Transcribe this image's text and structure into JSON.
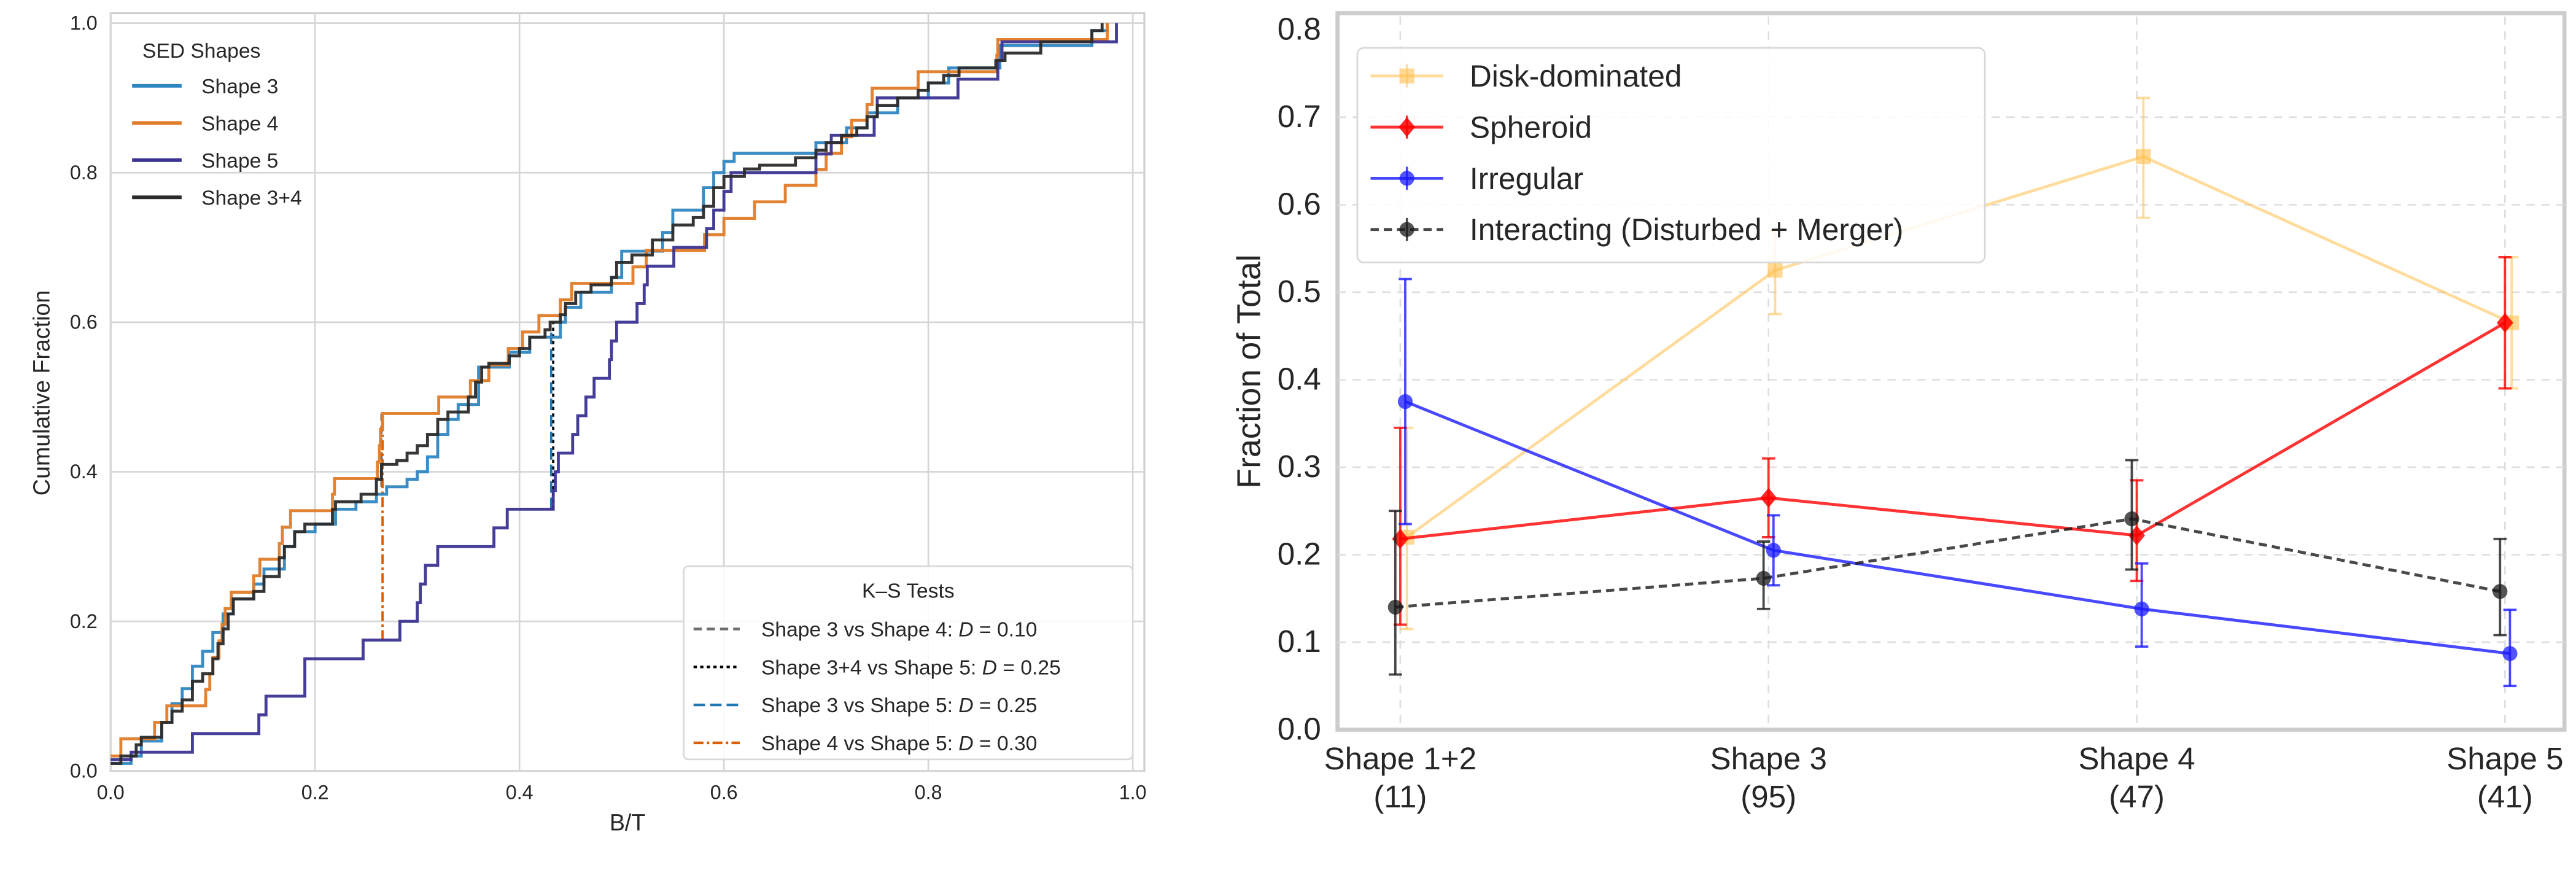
{
  "chart_data": [
    {
      "type": "line",
      "subtype": "step-cdf",
      "xlabel": "B/T",
      "ylabel": "Cumulative Fraction",
      "xlim": [
        0.0,
        1.0
      ],
      "ylim": [
        0.0,
        1.0
      ],
      "xticks": [
        "0.0",
        "0.2",
        "0.4",
        "0.6",
        "0.8",
        "1.0"
      ],
      "yticks": [
        "0.0",
        "0.2",
        "0.4",
        "0.6",
        "0.8",
        "1.0"
      ],
      "grid": true,
      "legend": {
        "title": "SED Shapes",
        "placement": "top-left"
      },
      "series": [
        {
          "name": "Shape 3",
          "color": "#2e86c1",
          "points": [
            [
              0,
              0.01
            ],
            [
              0.02,
              0.02
            ],
            [
              0.03,
              0.04
            ],
            [
              0.05,
              0.065
            ],
            [
              0.06,
              0.09
            ],
            [
              0.07,
              0.11
            ],
            [
              0.08,
              0.14
            ],
            [
              0.09,
              0.16
            ],
            [
              0.1,
              0.185
            ],
            [
              0.11,
              0.21
            ],
            [
              0.12,
              0.23
            ],
            [
              0.14,
              0.25
            ],
            [
              0.15,
              0.27
            ],
            [
              0.17,
              0.3
            ],
            [
              0.18,
              0.32
            ],
            [
              0.2,
              0.33
            ],
            [
              0.22,
              0.35
            ],
            [
              0.24,
              0.36
            ],
            [
              0.26,
              0.37
            ],
            [
              0.27,
              0.38
            ],
            [
              0.29,
              0.39
            ],
            [
              0.3,
              0.4
            ],
            [
              0.31,
              0.42
            ],
            [
              0.32,
              0.45
            ],
            [
              0.33,
              0.47
            ],
            [
              0.34,
              0.49
            ],
            [
              0.36,
              0.52
            ],
            [
              0.36,
              0.54
            ],
            [
              0.39,
              0.56
            ],
            [
              0.41,
              0.58
            ],
            [
              0.44,
              0.6
            ],
            [
              0.445,
              0.62
            ],
            [
              0.46,
              0.64
            ],
            [
              0.49,
              0.66
            ],
            [
              0.5,
              0.695
            ],
            [
              0.54,
              0.72
            ],
            [
              0.55,
              0.75
            ],
            [
              0.58,
              0.78
            ],
            [
              0.59,
              0.8
            ],
            [
              0.6,
              0.815
            ],
            [
              0.61,
              0.826
            ],
            [
              0.69,
              0.84
            ],
            [
              0.72,
              0.86
            ],
            [
              0.74,
              0.88
            ],
            [
              0.77,
              0.9
            ],
            [
              0.8,
              0.92
            ],
            [
              0.82,
              0.94
            ],
            [
              0.87,
              0.95
            ],
            [
              0.87,
              0.97
            ],
            [
              0.96,
              0.99
            ],
            [
              0.975,
              1.0
            ]
          ]
        },
        {
          "name": "Shape 4",
          "color": "#e07b28",
          "points": [
            [
              0,
              0.02
            ],
            [
              0.01,
              0.043
            ],
            [
              0.043,
              0.065
            ],
            [
              0.055,
              0.087
            ],
            [
              0.093,
              0.109
            ],
            [
              0.097,
              0.13
            ],
            [
              0.1,
              0.152
            ],
            [
              0.106,
              0.174
            ],
            [
              0.109,
              0.196
            ],
            [
              0.112,
              0.217
            ],
            [
              0.118,
              0.239
            ],
            [
              0.14,
              0.261
            ],
            [
              0.146,
              0.283
            ],
            [
              0.165,
              0.304
            ],
            [
              0.168,
              0.326
            ],
            [
              0.176,
              0.348
            ],
            [
              0.217,
              0.37
            ],
            [
              0.219,
              0.391
            ],
            [
              0.261,
              0.413
            ],
            [
              0.263,
              0.435
            ],
            [
              0.264,
              0.457
            ],
            [
              0.266,
              0.478
            ],
            [
              0.321,
              0.5
            ],
            [
              0.352,
              0.522
            ],
            [
              0.37,
              0.543
            ],
            [
              0.389,
              0.565
            ],
            [
              0.403,
              0.587
            ],
            [
              0.419,
              0.609
            ],
            [
              0.44,
              0.63
            ],
            [
              0.451,
              0.652
            ],
            [
              0.511,
              0.674
            ],
            [
              0.524,
              0.696
            ],
            [
              0.581,
              0.717
            ],
            [
              0.6,
              0.739
            ],
            [
              0.63,
              0.761
            ],
            [
              0.66,
              0.783
            ],
            [
              0.69,
              0.804
            ],
            [
              0.7,
              0.826
            ],
            [
              0.715,
              0.848
            ],
            [
              0.725,
              0.87
            ],
            [
              0.74,
              0.891
            ],
            [
              0.745,
              0.913
            ],
            [
              0.79,
              0.935
            ],
            [
              0.867,
              0.957
            ],
            [
              0.868,
              0.978
            ],
            [
              0.975,
              1.0
            ]
          ]
        },
        {
          "name": "Shape 5",
          "color": "#3b3494",
          "points": [
            [
              0,
              0.015
            ],
            [
              0.02,
              0.025
            ],
            [
              0.08,
              0.05
            ],
            [
              0.145,
              0.075
            ],
            [
              0.152,
              0.1
            ],
            [
              0.19,
              0.15
            ],
            [
              0.247,
              0.175
            ],
            [
              0.283,
              0.2
            ],
            [
              0.3,
              0.225
            ],
            [
              0.303,
              0.25
            ],
            [
              0.308,
              0.275
            ],
            [
              0.32,
              0.3
            ],
            [
              0.375,
              0.325
            ],
            [
              0.388,
              0.35
            ],
            [
              0.433,
              0.375
            ],
            [
              0.435,
              0.4
            ],
            [
              0.438,
              0.425
            ],
            [
              0.452,
              0.45
            ],
            [
              0.457,
              0.475
            ],
            [
              0.465,
              0.5
            ],
            [
              0.473,
              0.525
            ],
            [
              0.488,
              0.55
            ],
            [
              0.49,
              0.575
            ],
            [
              0.495,
              0.6
            ],
            [
              0.515,
              0.625
            ],
            [
              0.522,
              0.65
            ],
            [
              0.525,
              0.675
            ],
            [
              0.551,
              0.7
            ],
            [
              0.583,
              0.725
            ],
            [
              0.59,
              0.75
            ],
            [
              0.6,
              0.775
            ],
            [
              0.607,
              0.8
            ],
            [
              0.69,
              0.825
            ],
            [
              0.705,
              0.85
            ],
            [
              0.747,
              0.875
            ],
            [
              0.75,
              0.9
            ],
            [
              0.829,
              0.925
            ],
            [
              0.868,
              0.95
            ],
            [
              0.872,
              0.975
            ],
            [
              0.984,
              1.0
            ]
          ]
        },
        {
          "name": "Shape 3+4",
          "color": "#2b2b2b",
          "points": [
            [
              0,
              0.01
            ],
            [
              0.01,
              0.02
            ],
            [
              0.025,
              0.035
            ],
            [
              0.03,
              0.045
            ],
            [
              0.05,
              0.065
            ],
            [
              0.06,
              0.08
            ],
            [
              0.07,
              0.095
            ],
            [
              0.08,
              0.12
            ],
            [
              0.09,
              0.13
            ],
            [
              0.1,
              0.15
            ],
            [
              0.105,
              0.17
            ],
            [
              0.11,
              0.19
            ],
            [
              0.115,
              0.21
            ],
            [
              0.12,
              0.23
            ],
            [
              0.14,
              0.24
            ],
            [
              0.15,
              0.26
            ],
            [
              0.165,
              0.285
            ],
            [
              0.17,
              0.3
            ],
            [
              0.18,
              0.32
            ],
            [
              0.19,
              0.33
            ],
            [
              0.217,
              0.35
            ],
            [
              0.22,
              0.36
            ],
            [
              0.245,
              0.37
            ],
            [
              0.26,
              0.39
            ],
            [
              0.265,
              0.41
            ],
            [
              0.28,
              0.415
            ],
            [
              0.29,
              0.425
            ],
            [
              0.3,
              0.435
            ],
            [
              0.31,
              0.45
            ],
            [
              0.32,
              0.47
            ],
            [
              0.33,
              0.48
            ],
            [
              0.35,
              0.5
            ],
            [
              0.357,
              0.52
            ],
            [
              0.363,
              0.54
            ],
            [
              0.37,
              0.545
            ],
            [
              0.39,
              0.555
            ],
            [
              0.4,
              0.565
            ],
            [
              0.41,
              0.58
            ],
            [
              0.425,
              0.59
            ],
            [
              0.43,
              0.6
            ],
            [
              0.44,
              0.61
            ],
            [
              0.445,
              0.625
            ],
            [
              0.455,
              0.64
            ],
            [
              0.47,
              0.65
            ],
            [
              0.49,
              0.66
            ],
            [
              0.495,
              0.68
            ],
            [
              0.51,
              0.69
            ],
            [
              0.53,
              0.71
            ],
            [
              0.55,
              0.73
            ],
            [
              0.57,
              0.74
            ],
            [
              0.58,
              0.755
            ],
            [
              0.59,
              0.78
            ],
            [
              0.6,
              0.795
            ],
            [
              0.62,
              0.805
            ],
            [
              0.635,
              0.81
            ],
            [
              0.67,
              0.82
            ],
            [
              0.69,
              0.83
            ],
            [
              0.7,
              0.84
            ],
            [
              0.715,
              0.85
            ],
            [
              0.73,
              0.86
            ],
            [
              0.74,
              0.875
            ],
            [
              0.75,
              0.89
            ],
            [
              0.77,
              0.9
            ],
            [
              0.79,
              0.91
            ],
            [
              0.8,
              0.92
            ],
            [
              0.815,
              0.93
            ],
            [
              0.83,
              0.94
            ],
            [
              0.866,
              0.95
            ],
            [
              0.875,
              0.96
            ],
            [
              0.91,
              0.975
            ],
            [
              0.96,
              0.99
            ],
            [
              0.97,
              1.0
            ]
          ]
        }
      ],
      "ks_legend": {
        "title": "K–S Tests",
        "placement": "bottom-right",
        "entries": [
          {
            "label": "Shape 3 vs Shape 4: ",
            "stat": "D",
            "value": " = 0.10",
            "color": "#6e6e6e",
            "style": "dashed",
            "x": 0.265,
            "y_range": [
              0.38,
              0.478
            ]
          },
          {
            "label": "Shape 3+4 vs Shape 5: ",
            "stat": "D",
            "value": " = 0.25",
            "color": "#000000",
            "style": "dotted",
            "x": 0.433,
            "y_range": [
              0.35,
              0.6
            ]
          },
          {
            "label": "Shape 3 vs Shape 5: ",
            "stat": "D",
            "value": " = 0.25",
            "color": "#1f77b4",
            "style": "long-dashed",
            "x": 0.431,
            "y_range": [
              0.35,
              0.59
            ]
          },
          {
            "label": "Shape 4 vs Shape 5: ",
            "stat": "D",
            "value": " = 0.30",
            "color": "#d95f02",
            "style": "dash-dot",
            "x": 0.266,
            "y_range": [
              0.175,
              0.478
            ]
          }
        ]
      }
    },
    {
      "type": "line",
      "subtype": "errorbar",
      "ylabel": "Fraction of Total",
      "xlabel": "",
      "ylim": [
        0.0,
        0.8
      ],
      "yticks": [
        "0.0",
        "0.1",
        "0.2",
        "0.3",
        "0.4",
        "0.5",
        "0.6",
        "0.7",
        "0.8"
      ],
      "categories": [
        {
          "name": "Shape 1+2",
          "count": "(11)"
        },
        {
          "name": "Shape 3",
          "count": "(95)"
        },
        {
          "name": "Shape 4",
          "count": "(47)"
        },
        {
          "name": "Shape 5",
          "count": "(41)"
        }
      ],
      "grid": true,
      "legend": {
        "placement": "top-left"
      },
      "series": [
        {
          "name": "Disk-dominated",
          "color": "#ffc04d",
          "marker": "square",
          "line": "solid",
          "values": [
            0.22,
            0.525,
            0.655,
            0.465
          ],
          "err_low": [
            0.115,
            0.475,
            0.585,
            0.39
          ],
          "err_high": [
            0.345,
            0.57,
            0.722,
            0.54
          ]
        },
        {
          "name": "Spheroid",
          "color": "#ff0000",
          "marker": "diamond",
          "line": "solid",
          "values": [
            0.218,
            0.265,
            0.222,
            0.465
          ],
          "err_low": [
            0.12,
            0.22,
            0.17,
            0.39
          ],
          "err_high": [
            0.345,
            0.31,
            0.285,
            0.54
          ]
        },
        {
          "name": "Irregular",
          "color": "#1a1aff",
          "marker": "circle",
          "line": "solid",
          "values": [
            0.375,
            0.205,
            0.138,
            0.087
          ],
          "err_low": [
            0.235,
            0.165,
            0.095,
            0.05
          ],
          "err_high": [
            0.515,
            0.245,
            0.19,
            0.137
          ]
        },
        {
          "name": "Interacting (Disturbed + Merger)",
          "color": "#1a1a1a",
          "marker": "circle",
          "line": "dashed",
          "values": [
            0.14,
            0.173,
            0.241,
            0.158
          ],
          "err_low": [
            0.063,
            0.138,
            0.183,
            0.108
          ],
          "err_high": [
            0.25,
            0.215,
            0.308,
            0.218
          ]
        }
      ]
    }
  ]
}
